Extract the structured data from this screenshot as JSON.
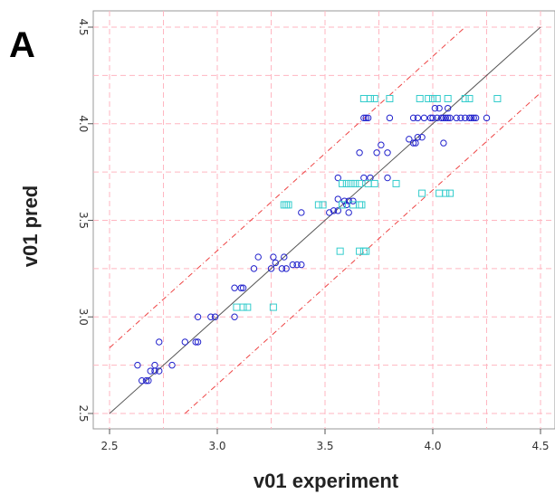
{
  "panel_label": "A",
  "chart_data": {
    "type": "scatter",
    "xlabel": "v01 experiment",
    "ylabel": "v01 pred",
    "xlim": [
      2.5,
      4.5
    ],
    "ylim": [
      2.5,
      4.5
    ],
    "xticks": [
      "2.5",
      "3.0",
      "3.5",
      "4.0",
      "4.5"
    ],
    "yticks": [
      "2.5",
      "3.0",
      "3.5",
      "4.0",
      "4.5"
    ],
    "grid": true,
    "colors": {
      "circles": "#2222cc",
      "squares": "#33cccc",
      "identity": "#555555",
      "band": "#ee4444",
      "grid": "#ffb6c1"
    },
    "lines": {
      "identity": {
        "x": [
          2.5,
          4.5
        ],
        "y": [
          2.5,
          4.5
        ]
      },
      "upper": {
        "x": [
          2.5,
          4.15
        ],
        "y": [
          2.84,
          4.5
        ]
      },
      "lower": {
        "x": [
          2.85,
          4.5
        ],
        "y": [
          2.5,
          4.16
        ]
      }
    },
    "series": [
      {
        "marker": "circle",
        "points": [
          [
            2.63,
            2.75
          ],
          [
            2.65,
            2.67
          ],
          [
            2.67,
            2.67
          ],
          [
            2.68,
            2.67
          ],
          [
            2.69,
            2.72
          ],
          [
            2.71,
            2.75
          ],
          [
            2.71,
            2.72
          ],
          [
            2.73,
            2.72
          ],
          [
            2.73,
            2.87
          ],
          [
            2.79,
            2.75
          ],
          [
            2.85,
            2.87
          ],
          [
            2.9,
            2.87
          ],
          [
            2.91,
            2.87
          ],
          [
            2.91,
            3.0
          ],
          [
            2.97,
            3.0
          ],
          [
            2.99,
            3.0
          ],
          [
            3.08,
            3.0
          ],
          [
            3.08,
            3.15
          ],
          [
            3.11,
            3.15
          ],
          [
            3.12,
            3.15
          ],
          [
            3.17,
            3.25
          ],
          [
            3.19,
            3.31
          ],
          [
            3.25,
            3.25
          ],
          [
            3.26,
            3.31
          ],
          [
            3.27,
            3.28
          ],
          [
            3.3,
            3.25
          ],
          [
            3.31,
            3.31
          ],
          [
            3.32,
            3.25
          ],
          [
            3.35,
            3.27
          ],
          [
            3.37,
            3.27
          ],
          [
            3.39,
            3.27
          ],
          [
            3.39,
            3.54
          ],
          [
            3.52,
            3.54
          ],
          [
            3.54,
            3.55
          ],
          [
            3.56,
            3.55
          ],
          [
            3.56,
            3.61
          ],
          [
            3.56,
            3.72
          ],
          [
            3.59,
            3.6
          ],
          [
            3.6,
            3.58
          ],
          [
            3.61,
            3.6
          ],
          [
            3.61,
            3.54
          ],
          [
            3.63,
            3.6
          ],
          [
            3.66,
            3.85
          ],
          [
            3.68,
            3.72
          ],
          [
            3.68,
            4.03
          ],
          [
            3.69,
            4.03
          ],
          [
            3.7,
            4.03
          ],
          [
            3.71,
            3.72
          ],
          [
            3.74,
            3.85
          ],
          [
            3.76,
            3.89
          ],
          [
            3.79,
            3.85
          ],
          [
            3.79,
            3.72
          ],
          [
            3.8,
            4.03
          ],
          [
            3.89,
            3.92
          ],
          [
            3.91,
            3.9
          ],
          [
            3.91,
            4.03
          ],
          [
            3.92,
            3.9
          ],
          [
            3.93,
            3.93
          ],
          [
            3.93,
            4.03
          ],
          [
            3.95,
            3.93
          ],
          [
            3.96,
            4.03
          ],
          [
            3.99,
            4.03
          ],
          [
            4.0,
            4.03
          ],
          [
            4.01,
            4.08
          ],
          [
            4.02,
            4.03
          ],
          [
            4.03,
            4.08
          ],
          [
            4.04,
            4.03
          ],
          [
            4.05,
            4.03
          ],
          [
            4.05,
            3.9
          ],
          [
            4.06,
            4.03
          ],
          [
            4.07,
            4.03
          ],
          [
            4.07,
            4.08
          ],
          [
            4.08,
            4.03
          ],
          [
            4.11,
            4.03
          ],
          [
            4.13,
            4.03
          ],
          [
            4.15,
            4.03
          ],
          [
            4.17,
            4.03
          ],
          [
            4.18,
            4.03
          ],
          [
            4.19,
            4.03
          ],
          [
            4.2,
            4.03
          ],
          [
            4.25,
            4.03
          ]
        ]
      },
      {
        "marker": "square",
        "points": [
          [
            3.09,
            3.05
          ],
          [
            3.12,
            3.05
          ],
          [
            3.14,
            3.05
          ],
          [
            3.26,
            3.05
          ],
          [
            3.31,
            3.58
          ],
          [
            3.32,
            3.58
          ],
          [
            3.33,
            3.58
          ],
          [
            3.47,
            3.58
          ],
          [
            3.49,
            3.58
          ],
          [
            3.57,
            3.34
          ],
          [
            3.58,
            3.58
          ],
          [
            3.58,
            3.69
          ],
          [
            3.6,
            3.69
          ],
          [
            3.62,
            3.69
          ],
          [
            3.63,
            3.58
          ],
          [
            3.64,
            3.69
          ],
          [
            3.66,
            3.34
          ],
          [
            3.66,
            3.69
          ],
          [
            3.66,
            3.58
          ],
          [
            3.67,
            3.58
          ],
          [
            3.68,
            3.34
          ],
          [
            3.68,
            4.13
          ],
          [
            3.69,
            3.34
          ],
          [
            3.7,
            3.69
          ],
          [
            3.71,
            4.13
          ],
          [
            3.73,
            3.69
          ],
          [
            3.73,
            4.13
          ],
          [
            3.8,
            4.13
          ],
          [
            3.83,
            3.69
          ],
          [
            3.94,
            4.13
          ],
          [
            3.95,
            3.64
          ],
          [
            3.98,
            4.13
          ],
          [
            4.0,
            4.13
          ],
          [
            4.02,
            4.13
          ],
          [
            4.03,
            3.64
          ],
          [
            4.06,
            3.64
          ],
          [
            4.07,
            4.13
          ],
          [
            4.08,
            3.64
          ],
          [
            4.15,
            4.13
          ],
          [
            4.17,
            4.13
          ],
          [
            4.3,
            4.13
          ]
        ]
      }
    ]
  }
}
